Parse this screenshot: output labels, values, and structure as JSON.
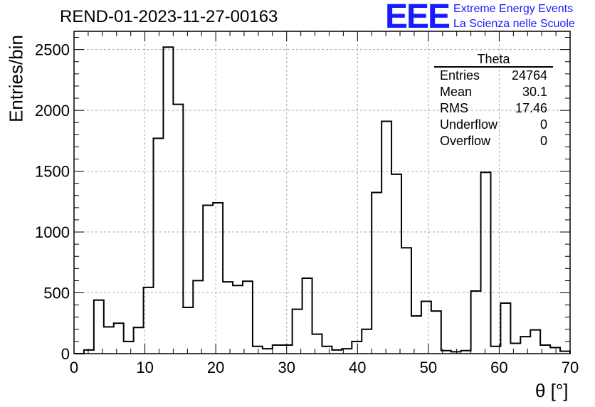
{
  "chart_data": {
    "type": "bar",
    "title": "REND-01-2023-11-27-00163",
    "xlabel": "θ [°]",
    "ylabel": "Entries/bin",
    "xlim": [
      0,
      70
    ],
    "ylim": [
      0,
      2650
    ],
    "grid": true,
    "bin_width": 1.4,
    "x_ticks": [
      0,
      10,
      20,
      30,
      40,
      50,
      60,
      70
    ],
    "y_ticks": [
      0,
      500,
      1000,
      1500,
      2000,
      2500
    ],
    "bin_edges_start": 1.4,
    "values": [
      30,
      440,
      220,
      250,
      100,
      215,
      545,
      1770,
      2520,
      2050,
      380,
      600,
      1220,
      1240,
      590,
      560,
      595,
      60,
      40,
      70,
      70,
      365,
      620,
      160,
      60,
      30,
      40,
      100,
      200,
      1325,
      1910,
      1475,
      870,
      310,
      430,
      350,
      25,
      15,
      25,
      515,
      1490,
      60,
      415,
      85,
      140,
      195,
      70,
      50,
      20
    ]
  },
  "stats_box": {
    "title": "Theta",
    "rows": [
      {
        "label": "Entries",
        "value": "24764"
      },
      {
        "label": "Mean",
        "value": "30.1"
      },
      {
        "label": "RMS",
        "value": "17.46"
      },
      {
        "label": "Underflow",
        "value": "0"
      },
      {
        "label": "Overflow",
        "value": "0"
      }
    ]
  },
  "logo": {
    "mark": "EEE",
    "line1": "Extreme Energy Events",
    "line2": "La Scienza nelle Scuole",
    "color": "#1a1aff"
  }
}
